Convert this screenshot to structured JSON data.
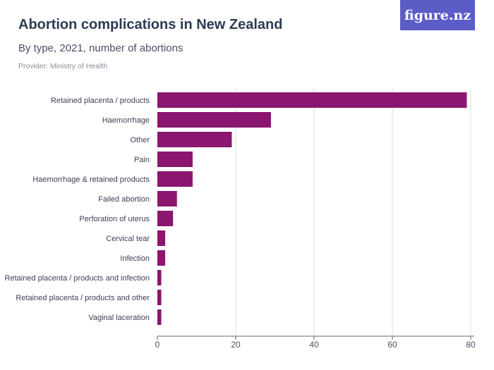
{
  "header": {
    "title": "Abortion complications in New Zealand",
    "subtitle": "By type, 2021, number of abortions",
    "provider": "Provider: Ministry of Health",
    "logo": "figure.nz"
  },
  "chart_data": {
    "type": "bar",
    "orientation": "horizontal",
    "categories": [
      "Retained placenta / products",
      "Haemorrhage",
      "Other",
      "Pain",
      "Haemorrhage & retained products",
      "Failed abortion",
      "Perforation of uterus",
      "Cervical tear",
      "Infection",
      "Retained placenta / products and infection",
      "Retained placenta / products and other",
      "Vaginal laceration"
    ],
    "values": [
      79,
      29,
      19,
      9,
      9,
      5,
      4,
      2,
      2,
      1,
      1,
      1
    ],
    "xlim": [
      0,
      80
    ],
    "xticks": [
      0,
      20,
      40,
      60,
      80
    ],
    "grid": true,
    "bar_color": "#8a166f"
  }
}
